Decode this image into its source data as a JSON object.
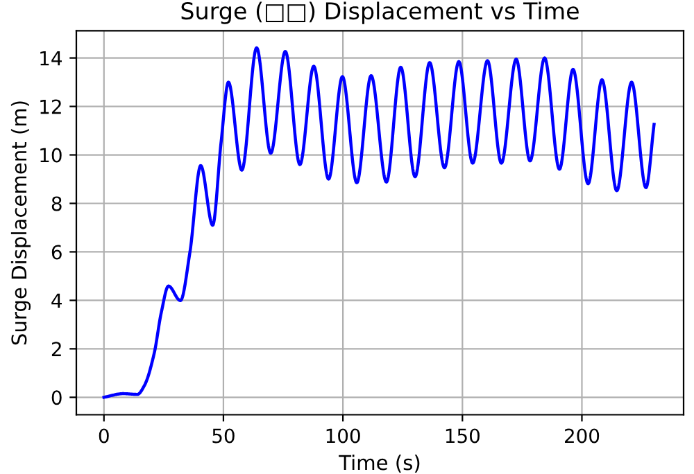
{
  "chart_data": {
    "type": "line",
    "title": "Surge (□□) Displacement vs Time",
    "xlabel": "Time (s)",
    "ylabel": "Surge Displacement (m)",
    "xlim": [
      -11.55,
      242.55
    ],
    "ylim": [
      -0.72,
      15.12
    ],
    "xticks": [
      0,
      50,
      100,
      150,
      200
    ],
    "yticks": [
      0,
      2,
      4,
      6,
      8,
      10,
      12,
      14
    ],
    "grid": true,
    "line_style": "solid",
    "marker": "none",
    "series": [
      {
        "color": "#0000ff",
        "x": [
          0,
          8,
          14,
          17,
          21,
          24,
          27,
          32,
          36,
          40.5,
          45.5,
          49,
          52.1,
          57.7,
          63.9,
          69.8,
          75.9,
          82,
          87.8,
          94,
          99.8,
          105.8,
          111.8,
          118.2,
          124.2,
          130.2,
          136.3,
          142.5,
          148.5,
          154.3,
          160.5,
          166.3,
          172.5,
          178.3,
          184.4,
          190.6,
          196.3,
          202.6,
          208.4,
          214.6,
          220.8,
          226.8,
          230.2
        ],
        "values": [
          0,
          0.15,
          0.12,
          0.5,
          1.8,
          3.5,
          4.59,
          3.99,
          6.0,
          9.56,
          7.1,
          10.5,
          13.0,
          9.37,
          14.42,
          10.07,
          14.27,
          9.6,
          13.66,
          9.0,
          13.23,
          8.85,
          13.27,
          8.88,
          13.62,
          9.1,
          13.81,
          9.47,
          13.85,
          9.66,
          13.89,
          9.66,
          13.95,
          9.75,
          14.0,
          9.41,
          13.53,
          8.81,
          13.1,
          8.52,
          13.0,
          8.65,
          11.26
        ]
      }
    ]
  }
}
